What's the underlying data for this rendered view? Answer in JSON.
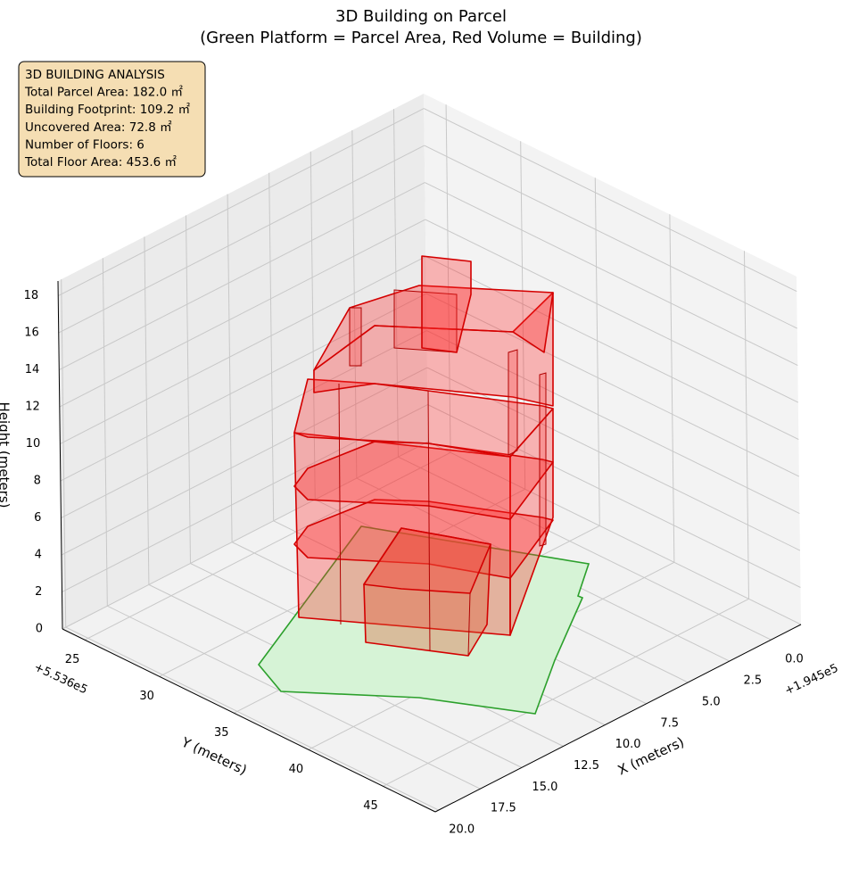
{
  "chart_data": {
    "type": "3d",
    "title": "3D Building on Parcel",
    "subtitle": "(Green Platform = Parcel Area, Red Volume = Building)",
    "xlabel": "X (meters)",
    "ylabel": "Y (meters)",
    "zlabel": "Height (meters)",
    "x_offset": "+1.945e5",
    "y_offset": "+5.536e5",
    "xlim": [
      -1.8,
      20.2
    ],
    "xticks": [
      {
        "value": 0,
        "label": "0.0"
      },
      2.5,
      {
        "value": 5,
        "label": "5.0"
      },
      7.5,
      {
        "value": 10,
        "label": "10.0"
      },
      12.5,
      {
        "value": 15,
        "label": "15.0"
      },
      17.5,
      {
        "value": 20,
        "label": "20.0"
      }
    ],
    "ylim": [
      23.5,
      48.5
    ],
    "yticks": [
      25,
      30,
      35,
      40,
      45
    ],
    "zlim": [
      0,
      18.8
    ],
    "zticks": [
      0,
      2,
      4,
      6,
      8,
      10,
      12,
      14,
      16,
      18
    ],
    "grid": true,
    "info": [
      "3D BUILDING ANALYSIS",
      "Total Parcel Area: 182.0 ㎡",
      "Building Footprint: 109.2 ㎡",
      "Uncovered Area: 72.8 ㎡",
      "Number of Floors: 6",
      "Total Floor Area: 453.6 ㎡"
    ]
  }
}
